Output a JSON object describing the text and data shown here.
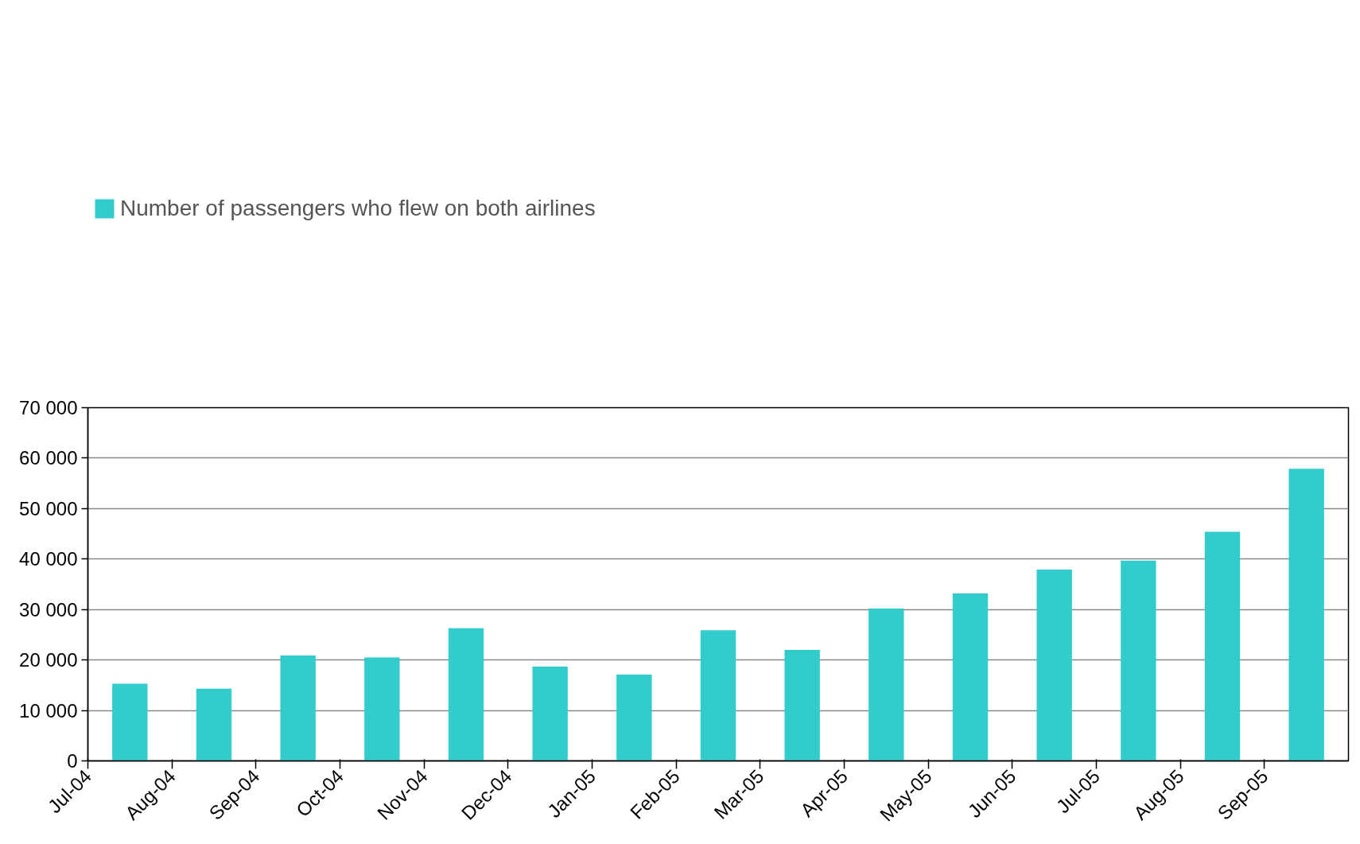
{
  "chart_data": {
    "type": "bar",
    "categories": [
      "Jul-04",
      "Aug-04",
      "Sep-04",
      "Oct-04",
      "Nov-04",
      "Dec-04",
      "Jan-05",
      "Feb-05",
      "Mar-05",
      "Apr-05",
      "May-05",
      "Jun-05",
      "Jul-05",
      "Aug-05",
      "Sep-05"
    ],
    "series": [
      {
        "name": "Number of passengers who flew on both airlines",
        "color": "#33cccc",
        "values": [
          15300,
          14300,
          20900,
          20500,
          26300,
          18700,
          17100,
          25900,
          22000,
          30200,
          33200,
          37900,
          39700,
          45400,
          57900
        ]
      }
    ],
    "ylim": [
      0,
      70000
    ],
    "yticks": [
      {
        "value": 0,
        "label": "0"
      },
      {
        "value": 10000,
        "label": "10 000"
      },
      {
        "value": 20000,
        "label": "20 000"
      },
      {
        "value": 30000,
        "label": "30 000"
      },
      {
        "value": 40000,
        "label": "40 000"
      },
      {
        "value": 50000,
        "label": "50 000"
      },
      {
        "value": 60000,
        "label": "60 000"
      },
      {
        "value": 70000,
        "label": "70 000"
      }
    ],
    "grid": "y",
    "legend": "top left"
  }
}
